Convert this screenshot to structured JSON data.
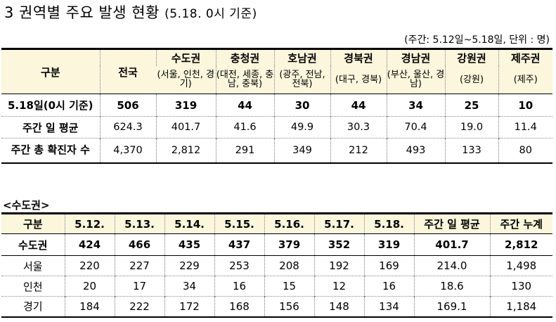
{
  "title": {
    "main": "3 권역별 주요 발생 현황",
    "sub": "(5.18. 0시 기준)"
  },
  "unit_note": "(주간: 5.12일~5.18일, 단위 : 명)",
  "regions_table": {
    "corner_label": "구분",
    "national_label": "전국",
    "regions": [
      {
        "name": "수도권",
        "sub": "(서울, 인천, 경기)"
      },
      {
        "name": "충청권",
        "sub": "(대전, 세종, 충남, 충북)"
      },
      {
        "name": "호남권",
        "sub": "(광주, 전남, 전북)"
      },
      {
        "name": "경북권",
        "sub": "(대구, 경북)"
      },
      {
        "name": "경남권",
        "sub": "(부산, 울산, 경남)"
      },
      {
        "name": "강원권",
        "sub": "(강원)"
      },
      {
        "name": "제주권",
        "sub": "(제주)"
      }
    ],
    "rows": [
      {
        "label": "5.18일(0시 기준)",
        "values": [
          "506",
          "319",
          "44",
          "30",
          "44",
          "34",
          "25",
          "10"
        ]
      },
      {
        "label": "주간 일 평균",
        "values": [
          "624.3",
          "401.7",
          "41.6",
          "49.9",
          "30.3",
          "70.4",
          "19.0",
          "11.4"
        ]
      },
      {
        "label": "주간 총 확진자 수",
        "values": [
          "4,370",
          "2,812",
          "291",
          "349",
          "212",
          "493",
          "133",
          "80"
        ]
      }
    ]
  },
  "capital_section": {
    "title": "<수도권>",
    "headers": [
      "구분",
      "5.12.",
      "5.13.",
      "5.14.",
      "5.15.",
      "5.16.",
      "5.17.",
      "5.18.",
      "주간 일 평균",
      "주간 누계"
    ],
    "rows": [
      {
        "label": "수도권",
        "values": [
          "424",
          "466",
          "435",
          "437",
          "379",
          "352",
          "319",
          "401.7",
          "2,812"
        ]
      },
      {
        "label": "서울",
        "values": [
          "220",
          "227",
          "229",
          "253",
          "208",
          "192",
          "169",
          "214.0",
          "1,498"
        ]
      },
      {
        "label": "인천",
        "values": [
          "20",
          "17",
          "34",
          "16",
          "15",
          "12",
          "16",
          "18.6",
          "130"
        ]
      },
      {
        "label": "경기",
        "values": [
          "184",
          "222",
          "172",
          "168",
          "156",
          "148",
          "134",
          "169.1",
          "1,184"
        ]
      }
    ]
  }
}
